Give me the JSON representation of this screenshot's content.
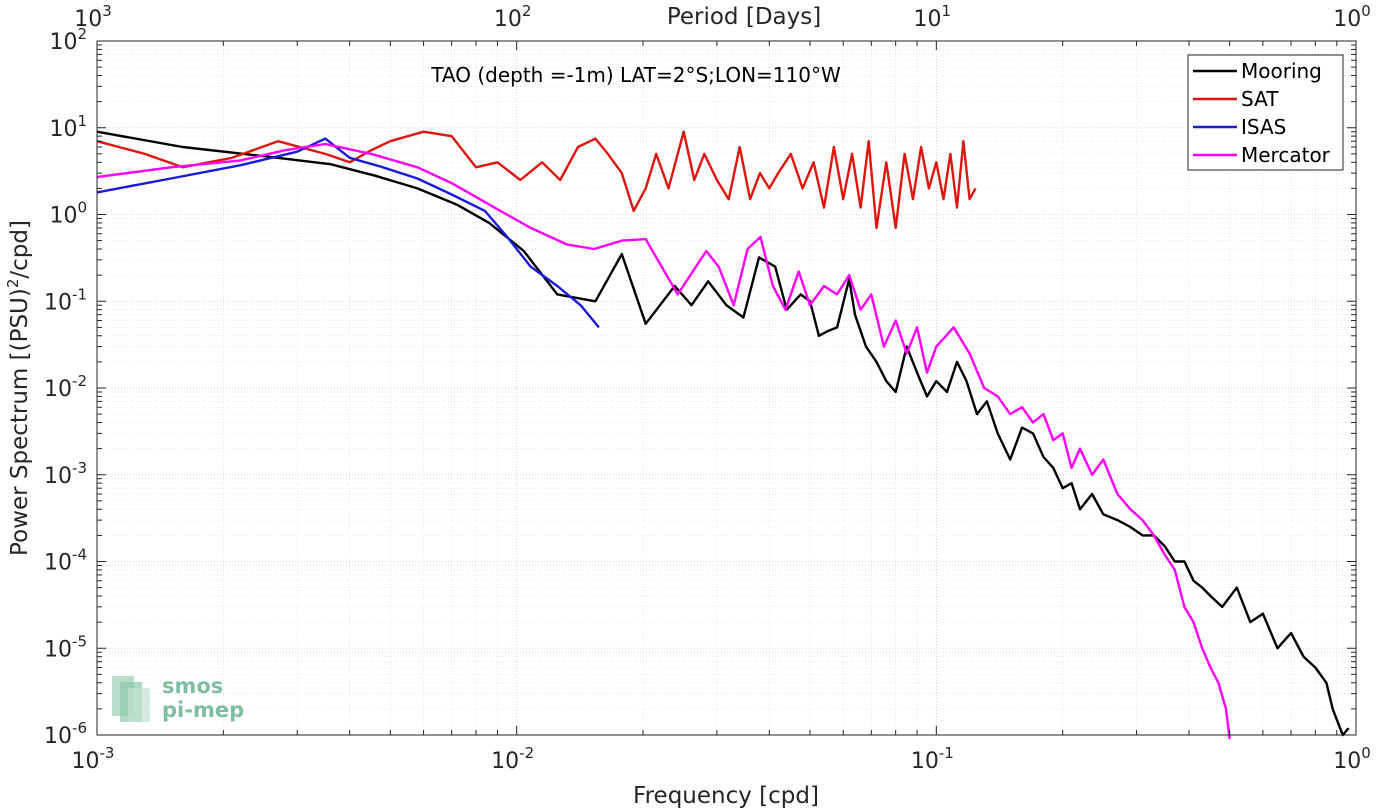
{
  "chart_data": {
    "type": "line",
    "title": "TAO (depth =-1m) LAT=2°S;LON=110°W",
    "xlabel": "Frequency [cpd]",
    "ylabel_main": "Power Spectrum [(PSU)",
    "ylabel_sup": "2",
    "ylabel_tail": "/cpd]",
    "x2label": "Period [Days]",
    "xscale": "log",
    "yscale": "log",
    "xlim": [
      0.001,
      1
    ],
    "ylim": [
      1e-06,
      100
    ],
    "grid": true,
    "legend_position": "top-right",
    "x_ticks": [
      {
        "value": 0.001,
        "base": "10",
        "exp": "-3"
      },
      {
        "value": 0.01,
        "base": "10",
        "exp": "-2"
      },
      {
        "value": 0.1,
        "base": "10",
        "exp": "-1"
      },
      {
        "value": 1,
        "base": "10",
        "exp": "0"
      }
    ],
    "x2_ticks": [
      {
        "value": 0.001,
        "base": "10",
        "exp": "3"
      },
      {
        "value": 0.01,
        "base": "10",
        "exp": "2"
      },
      {
        "value": 0.1,
        "base": "10",
        "exp": "1"
      },
      {
        "value": 1,
        "base": "10",
        "exp": "0"
      }
    ],
    "y_ticks": [
      {
        "value": 100,
        "base": "10",
        "exp": "2"
      },
      {
        "value": 10,
        "base": "10",
        "exp": "1"
      },
      {
        "value": 1,
        "base": "10",
        "exp": "0"
      },
      {
        "value": 0.1,
        "base": "10",
        "exp": "-1"
      },
      {
        "value": 0.01,
        "base": "10",
        "exp": "-2"
      },
      {
        "value": 0.001,
        "base": "10",
        "exp": "-3"
      },
      {
        "value": 0.0001,
        "base": "10",
        "exp": "-4"
      },
      {
        "value": 1e-05,
        "base": "10",
        "exp": "-5"
      },
      {
        "value": 1e-06,
        "base": "10",
        "exp": "-6"
      }
    ],
    "series": [
      {
        "name": "Mooring",
        "color": "#000000",
        "x": [
          0.001,
          0.0016,
          0.0025,
          0.0036,
          0.0046,
          0.0058,
          0.0072,
          0.0086,
          0.0104,
          0.0125,
          0.0154,
          0.0178,
          0.0203,
          0.0238,
          0.0261,
          0.0286,
          0.0316,
          0.0347,
          0.0378,
          0.0413,
          0.044,
          0.0475,
          0.05,
          0.0525,
          0.055,
          0.058,
          0.062,
          0.064,
          0.068,
          0.072,
          0.076,
          0.08,
          0.085,
          0.09,
          0.095,
          0.1,
          0.106,
          0.112,
          0.118,
          0.125,
          0.132,
          0.14,
          0.15,
          0.16,
          0.17,
          0.18,
          0.19,
          0.2,
          0.21,
          0.22,
          0.235,
          0.25,
          0.27,
          0.29,
          0.31,
          0.33,
          0.35,
          0.37,
          0.39,
          0.41,
          0.43,
          0.45,
          0.48,
          0.52,
          0.56,
          0.6,
          0.65,
          0.7,
          0.75,
          0.8,
          0.85,
          0.88,
          0.9,
          0.93,
          0.96
        ],
        "y": [
          9,
          6,
          4.7,
          3.8,
          2.8,
          2.0,
          1.3,
          0.8,
          0.38,
          0.12,
          0.1,
          0.35,
          0.055,
          0.15,
          0.09,
          0.17,
          0.09,
          0.065,
          0.32,
          0.25,
          0.08,
          0.12,
          0.1,
          0.04,
          0.045,
          0.05,
          0.18,
          0.07,
          0.03,
          0.02,
          0.012,
          0.009,
          0.03,
          0.015,
          0.008,
          0.012,
          0.009,
          0.02,
          0.012,
          0.005,
          0.007,
          0.003,
          0.0015,
          0.0035,
          0.003,
          0.0016,
          0.0012,
          0.0007,
          0.0008,
          0.0004,
          0.0006,
          0.00035,
          0.0003,
          0.00025,
          0.0002,
          0.0002,
          0.00015,
          0.0001,
          0.0001,
          6e-05,
          5e-05,
          4e-05,
          3e-05,
          5e-05,
          2e-05,
          2.5e-05,
          1e-05,
          1.5e-05,
          8e-06,
          6e-06,
          4e-06,
          2e-06,
          1.5e-06,
          1e-06,
          1.2e-06
        ]
      },
      {
        "name": "SAT",
        "color": "#e0160e",
        "x": [
          0.001,
          0.0013,
          0.0016,
          0.0021,
          0.0027,
          0.0035,
          0.004,
          0.0045,
          0.005,
          0.006,
          0.007,
          0.008,
          0.009,
          0.0102,
          0.0115,
          0.0127,
          0.014,
          0.0154,
          0.0165,
          0.0178,
          0.019,
          0.0203,
          0.0215,
          0.023,
          0.025,
          0.0265,
          0.028,
          0.03,
          0.032,
          0.034,
          0.036,
          0.038,
          0.04,
          0.042,
          0.045,
          0.048,
          0.051,
          0.054,
          0.057,
          0.06,
          0.063,
          0.066,
          0.069,
          0.072,
          0.076,
          0.08,
          0.084,
          0.088,
          0.092,
          0.096,
          0.1,
          0.104,
          0.108,
          0.112,
          0.116,
          0.12,
          0.124
        ],
        "y": [
          7,
          5,
          3.5,
          4.5,
          7,
          5,
          4,
          5.5,
          7,
          9,
          8,
          3.5,
          4,
          2.5,
          4,
          2.5,
          6,
          7.5,
          5,
          3,
          1.1,
          2,
          5,
          2,
          9,
          2.5,
          5,
          2.5,
          1.5,
          6,
          1.5,
          3,
          2,
          3,
          5,
          2,
          4,
          1.2,
          6,
          1.5,
          5,
          1.2,
          7,
          0.7,
          4,
          0.7,
          5,
          1.5,
          6,
          2,
          4,
          1.5,
          5,
          1.2,
          7,
          1.5,
          2
        ]
      },
      {
        "name": "ISAS",
        "color": "#1a1adc",
        "x": [
          0.001,
          0.0015,
          0.0022,
          0.003,
          0.0035,
          0.004,
          0.0048,
          0.0058,
          0.007,
          0.0084,
          0.0095,
          0.0108,
          0.0125,
          0.0142,
          0.0157
        ],
        "y": [
          1.8,
          2.6,
          3.7,
          5.3,
          7.5,
          4.5,
          3.5,
          2.6,
          1.7,
          1.1,
          0.55,
          0.25,
          0.15,
          0.09,
          0.05
        ]
      },
      {
        "name": "Mercator",
        "color": "#ff00ff",
        "x": [
          0.001,
          0.0015,
          0.0022,
          0.0028,
          0.0035,
          0.0045,
          0.0058,
          0.007,
          0.0086,
          0.0108,
          0.0132,
          0.0153,
          0.0178,
          0.0203,
          0.0242,
          0.0283,
          0.0303,
          0.0329,
          0.0355,
          0.0381,
          0.0408,
          0.0437,
          0.047,
          0.05,
          0.054,
          0.058,
          0.062,
          0.066,
          0.07,
          0.075,
          0.08,
          0.085,
          0.09,
          0.095,
          0.1,
          0.11,
          0.12,
          0.13,
          0.14,
          0.15,
          0.16,
          0.17,
          0.18,
          0.19,
          0.2,
          0.21,
          0.22,
          0.235,
          0.25,
          0.27,
          0.29,
          0.31,
          0.33,
          0.35,
          0.37,
          0.39,
          0.41,
          0.43,
          0.45,
          0.47,
          0.49,
          0.5
        ],
        "y": [
          2.7,
          3.5,
          4.2,
          5.5,
          6.5,
          5,
          3.5,
          2.3,
          1.3,
          0.7,
          0.45,
          0.4,
          0.5,
          0.52,
          0.12,
          0.38,
          0.25,
          0.09,
          0.4,
          0.55,
          0.15,
          0.08,
          0.22,
          0.09,
          0.15,
          0.12,
          0.2,
          0.08,
          0.12,
          0.03,
          0.06,
          0.025,
          0.05,
          0.015,
          0.03,
          0.05,
          0.025,
          0.01,
          0.008,
          0.005,
          0.006,
          0.004,
          0.005,
          0.0025,
          0.003,
          0.0012,
          0.002,
          0.001,
          0.0015,
          0.0006,
          0.0004,
          0.0003,
          0.0002,
          0.00012,
          8e-05,
          3e-05,
          2e-05,
          1e-05,
          6e-06,
          4e-06,
          2e-06,
          9e-07
        ]
      }
    ],
    "watermark": {
      "line1": "smos",
      "line2": "pi-mep"
    }
  }
}
